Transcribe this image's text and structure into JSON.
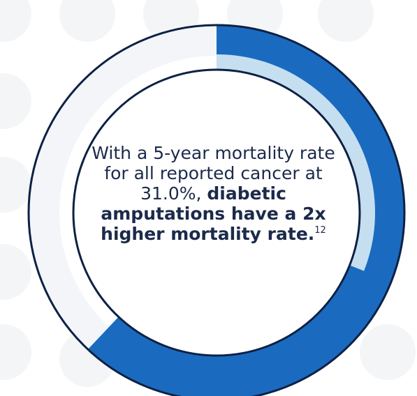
{
  "chart_data": {
    "type": "pie",
    "style": "donut",
    "segments": [
      {
        "value": 31.0
      },
      {
        "value": 62.0
      }
    ],
    "colors": {
      "highlight": "#c6dff0",
      "main": "#1a6bbf",
      "track": "#f3f5f9",
      "outline": "#0d2145",
      "background_dots": "#f4f5f7"
    }
  },
  "caption": {
    "text_regular": "With a 5-year mortality rate for all reported cancer at 31.0%,",
    "text_bold": "diabetic amputations have a 2x higher mortality rate.",
    "footnote": "12"
  }
}
